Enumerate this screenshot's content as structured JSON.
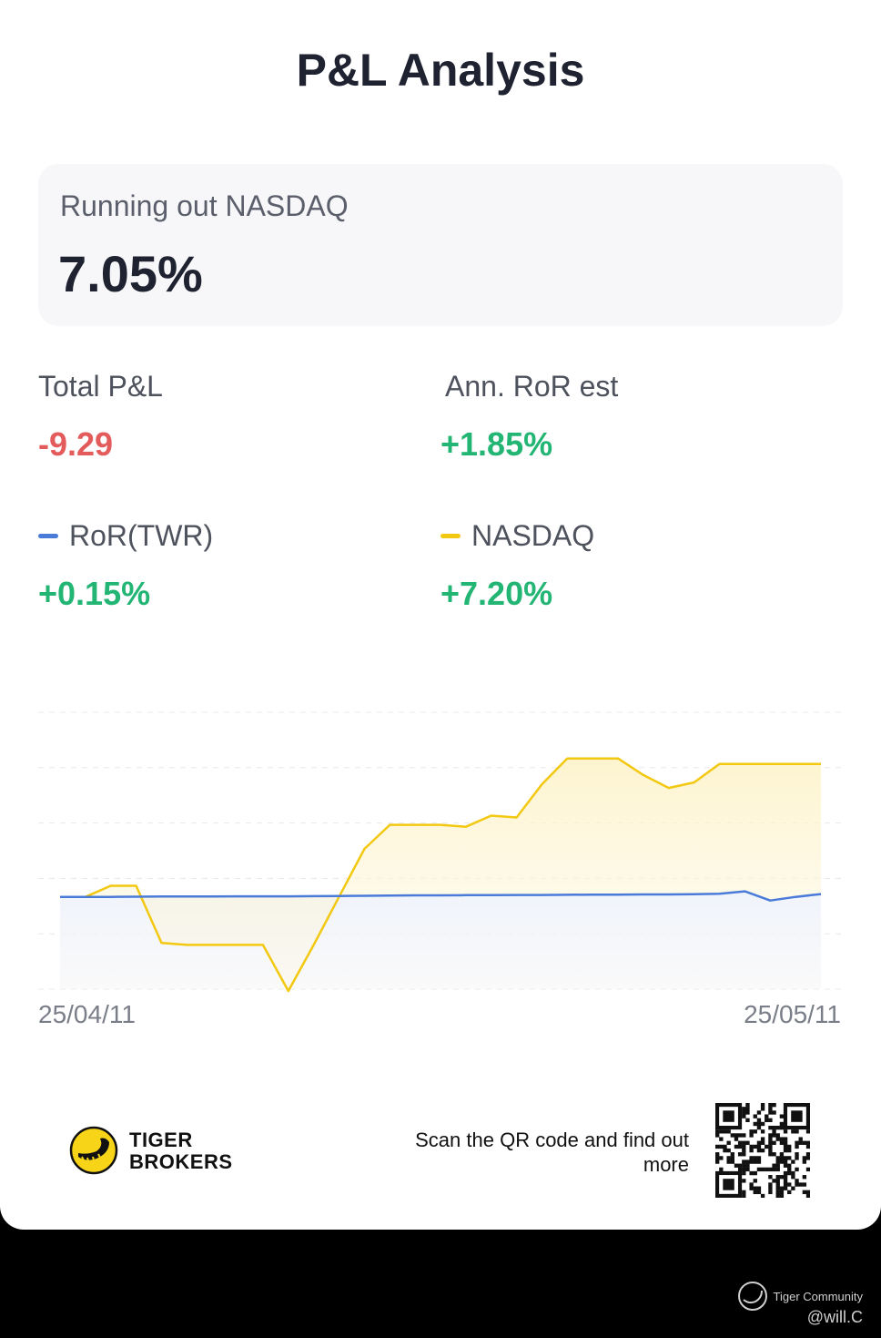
{
  "header": {
    "title": "P&L Analysis"
  },
  "summary": {
    "label": "Running out NASDAQ",
    "value": "7.05%"
  },
  "stats": {
    "total_pnl": {
      "label": "Total P&L",
      "value": "-9.29"
    },
    "ann_ror": {
      "label": "Ann. RoR est",
      "value": "+1.85%"
    },
    "ror_twr": {
      "label": "RoR(TWR)",
      "value": "+0.15%",
      "color": "#4a7bd9"
    },
    "nasdaq": {
      "label": "NASDAQ",
      "value": "+7.20%",
      "color": "#f2c811"
    }
  },
  "chart_data": {
    "type": "line",
    "title": "",
    "xlabel": "",
    "ylabel": "",
    "x_start": "25/04/11",
    "x_end": "25/05/11",
    "ylim": [
      -5,
      10
    ],
    "grid": true,
    "series": [
      {
        "name": "RoR(TWR)",
        "color": "#4a7bd9",
        "values": [
          0,
          0,
          0,
          0.01,
          0.02,
          0.02,
          0.02,
          0.03,
          0.03,
          0.03,
          0.04,
          0.05,
          0.06,
          0.07,
          0.08,
          0.08,
          0.09,
          0.09,
          0.1,
          0.1,
          0.11,
          0.12,
          0.12,
          0.13,
          0.13,
          0.14,
          0.17,
          0.3,
          -0.2,
          0.0,
          0.15
        ]
      },
      {
        "name": "NASDAQ",
        "color": "#f2c811",
        "values": [
          0,
          0,
          0.6,
          0.6,
          -2.5,
          -2.6,
          -2.6,
          -2.6,
          -2.6,
          -5.1,
          -2.6,
          0,
          2.6,
          3.9,
          3.9,
          3.9,
          3.8,
          4.4,
          4.3,
          6.1,
          7.5,
          7.5,
          7.5,
          6.6,
          5.9,
          6.2,
          7.2,
          7.2,
          7.2,
          7.2,
          7.2
        ]
      }
    ]
  },
  "footer": {
    "brand_line1": "TIGER",
    "brand_line2": "BROKERS",
    "scan_text": "Scan the QR code and find out more"
  },
  "watermark": {
    "community": "Tiger Community",
    "handle": "@will.C"
  }
}
